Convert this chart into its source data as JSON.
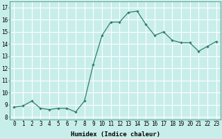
{
  "x": [
    0,
    1,
    2,
    3,
    4,
    5,
    6,
    7,
    8,
    9,
    10,
    11,
    12,
    13,
    14,
    15,
    16,
    17,
    18,
    19,
    20,
    21,
    22,
    23
  ],
  "y": [
    8.8,
    8.9,
    9.3,
    8.7,
    8.6,
    8.7,
    8.7,
    8.4,
    9.3,
    12.3,
    14.7,
    15.8,
    15.8,
    16.6,
    16.7,
    15.6,
    14.7,
    15.0,
    14.3,
    14.1,
    14.1,
    13.4,
    13.8,
    14.2
  ],
  "line_color": "#2e7d6e",
  "marker": "D",
  "marker_size": 1.8,
  "line_width": 0.9,
  "bg_color": "#c8eeeb",
  "grid_color": "#ffffff",
  "xlabel": "Humidex (Indice chaleur)",
  "xlim": [
    -0.5,
    23.5
  ],
  "ylim": [
    7.8,
    17.5
  ],
  "yticks": [
    8,
    9,
    10,
    11,
    12,
    13,
    14,
    15,
    16,
    17
  ],
  "xticks": [
    0,
    1,
    2,
    3,
    4,
    5,
    6,
    7,
    8,
    9,
    10,
    11,
    12,
    13,
    14,
    15,
    16,
    17,
    18,
    19,
    20,
    21,
    22,
    23
  ],
  "xlabel_fontsize": 6.5,
  "tick_fontsize": 5.5
}
